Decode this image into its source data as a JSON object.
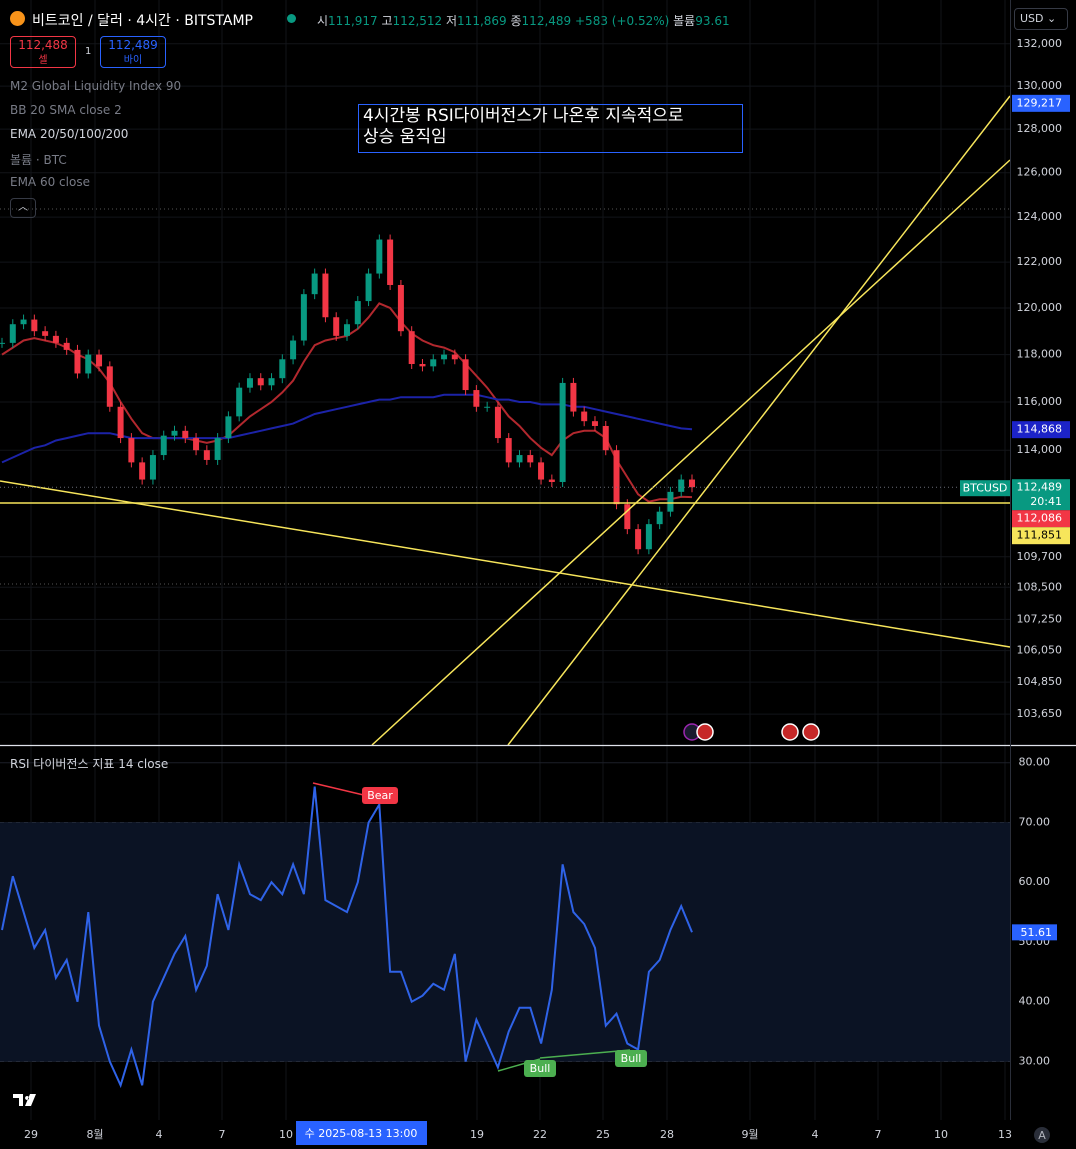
{
  "header": {
    "symbol": "비트코인 / 달러 · 4시간 · BITSTAMP",
    "ohlc": [
      {
        "label": "시",
        "value": "111,917"
      },
      {
        "label": "고",
        "value": "112,512"
      },
      {
        "label": "저",
        "value": "111,869"
      },
      {
        "label": "종",
        "value": "112,489"
      }
    ],
    "change": "+583 (+0.52%)",
    "volume_label": "볼륨",
    "volume": "93.61",
    "sell": {
      "price": "112,488",
      "label": "셀"
    },
    "quantity": "1",
    "buy": {
      "price": "112,489",
      "label": "바이"
    },
    "currency": "USD",
    "indicators": [
      "M2 Global Liquidity Index 90",
      "BB 20 SMA close 2",
      "EMA 20/50/100/200",
      "볼륨 · BTC",
      "EMA 60 close"
    ]
  },
  "chart_data": [
    {
      "type": "candlestick",
      "log_scale": true,
      "grid": true,
      "annotation": [
        "4시간봉 RSI다이버전스가 나온후 지속적으로",
        "상승 움직임"
      ],
      "ylim": [
        102500,
        134100
      ],
      "yticks": [
        {
          "value": 132000,
          "label": "132,000"
        },
        {
          "value": 130000,
          "label": "130,000"
        },
        {
          "value": 128000,
          "label": "128,000"
        },
        {
          "value": 126000,
          "label": "126,000"
        },
        {
          "value": 124000,
          "label": "124,000"
        },
        {
          "value": 122000,
          "label": "122,000"
        },
        {
          "value": 120000,
          "label": "120,000"
        },
        {
          "value": 118000,
          "label": "118,000"
        },
        {
          "value": 116000,
          "label": "116,000"
        },
        {
          "value": 114000,
          "label": "114,000"
        },
        {
          "value": 109700,
          "label": "109,700"
        },
        {
          "value": 108500,
          "label": "108,500"
        },
        {
          "value": 107250,
          "label": "107,250"
        },
        {
          "value": 106050,
          "label": "106,050"
        },
        {
          "value": 104850,
          "label": "104,850"
        },
        {
          "value": 103650,
          "label": "103,650"
        }
      ],
      "up_color": "#089981",
      "down_color": "#f23645",
      "series": [
        {
          "name": "BTCUSD",
          "values": [
            118500,
            119300,
            119500,
            119000,
            118800,
            118500,
            118200,
            117200,
            118000,
            117500,
            115800,
            114500,
            113500,
            112800,
            113800,
            114600,
            114800,
            114500,
            114000,
            113600,
            114500,
            115400,
            116600,
            117000,
            116700,
            117000,
            117800,
            118600,
            120600,
            121500,
            119600,
            118800,
            119300,
            120300,
            121500,
            123000,
            121000,
            119000,
            117600,
            117500,
            117800,
            118000,
            117800,
            116500,
            115800,
            115800,
            114500,
            113500,
            113800,
            113500,
            112800,
            112700,
            116800,
            115600,
            115200,
            115000,
            114000,
            111800,
            110800,
            110000,
            111000,
            111500,
            112300,
            112800,
            112489
          ]
        },
        {
          "color": "#b2282e",
          "values": [
            118000,
            118300,
            118600,
            118700,
            118600,
            118500,
            118300,
            118000,
            117800,
            117400,
            116800,
            116000,
            115300,
            114700,
            114500,
            114500,
            114500,
            114500,
            114400,
            114300,
            114400,
            114600,
            115000,
            115400,
            115700,
            116000,
            116400,
            116900,
            117700,
            118400,
            118600,
            118700,
            118800,
            119100,
            119600,
            120200,
            120000,
            119400,
            118900,
            118600,
            118400,
            118300,
            118100,
            117600,
            117100,
            116600,
            116000,
            115400,
            115000,
            114500,
            114100,
            113800,
            114400,
            114700,
            114800,
            114800,
            114500,
            113600,
            112900,
            112200,
            111900,
            112000,
            112000,
            112100,
            112086
          ]
        },
        {
          "color": "#1c23a8",
          "values": [
            113500,
            113700,
            113900,
            114100,
            114200,
            114400,
            114500,
            114600,
            114700,
            114700,
            114700,
            114600,
            114500,
            114500,
            114500,
            114500,
            114500,
            114500,
            114500,
            114500,
            114500,
            114500,
            114600,
            114700,
            114800,
            114900,
            115000,
            115100,
            115300,
            115500,
            115600,
            115700,
            115800,
            115900,
            116000,
            116100,
            116100,
            116200,
            116200,
            116200,
            116200,
            116300,
            116300,
            116300,
            116300,
            116200,
            116100,
            116100,
            116000,
            116000,
            115900,
            115900,
            115900,
            115800,
            115800,
            115700,
            115600,
            115500,
            115400,
            115300,
            115200,
            115100,
            115000,
            114900,
            114868
          ]
        }
      ],
      "price_tags": [
        {
          "value": 129217,
          "label": "129,217",
          "color": "#2962ff"
        },
        {
          "value": 114868,
          "label": "114,868",
          "color": "#1c23c8"
        },
        {
          "value": 112489,
          "label": "112,489",
          "name": "BTCUSD",
          "countdown": "20:41",
          "color": "#089981"
        },
        {
          "value": 112086,
          "label": "112,086",
          "color": "#f23645"
        },
        {
          "value": 111851,
          "label": "111,851",
          "color": "#f7e55b"
        }
      ]
    },
    {
      "type": "line",
      "title": "RSI 다이버전스 지표 14 close",
      "ylim": [
        20.2,
        82.8
      ],
      "band": [
        30,
        70
      ],
      "yticks": [
        {
          "value": 80,
          "label": "80.00"
        },
        {
          "value": 70,
          "label": "70.00"
        },
        {
          "value": 60,
          "label": "60.00"
        },
        {
          "value": 50,
          "label": "50.00"
        },
        {
          "value": 40,
          "label": "40.00"
        },
        {
          "value": 30,
          "label": "30.00"
        }
      ],
      "series": [
        {
          "color": "#2f63e8",
          "values": [
            52,
            61,
            55,
            49,
            52,
            44,
            47,
            40,
            55,
            36,
            30,
            26,
            32,
            26,
            40,
            44,
            48,
            51,
            42,
            46,
            58,
            52,
            63,
            58,
            57,
            60,
            58,
            63,
            58,
            76,
            57,
            56,
            55,
            60,
            70,
            73,
            45,
            45,
            40,
            41,
            43,
            42,
            48,
            30,
            37,
            33,
            29,
            35,
            39,
            39,
            33,
            42,
            63,
            55,
            53,
            49,
            36,
            38,
            33,
            32,
            45,
            47,
            52,
            56,
            51.61
          ],
          "last_label": "51.61"
        }
      ],
      "annotations": [
        "Bear",
        "Bull",
        "Bull"
      ],
      "xtick_labels": [
        "29",
        "8월",
        "4",
        "7",
        "10",
        "19",
        "22",
        "25",
        "28",
        "9월",
        "4",
        "7",
        "10",
        "13"
      ],
      "crosshair_label": "수 2025-08-13   13:00"
    }
  ]
}
